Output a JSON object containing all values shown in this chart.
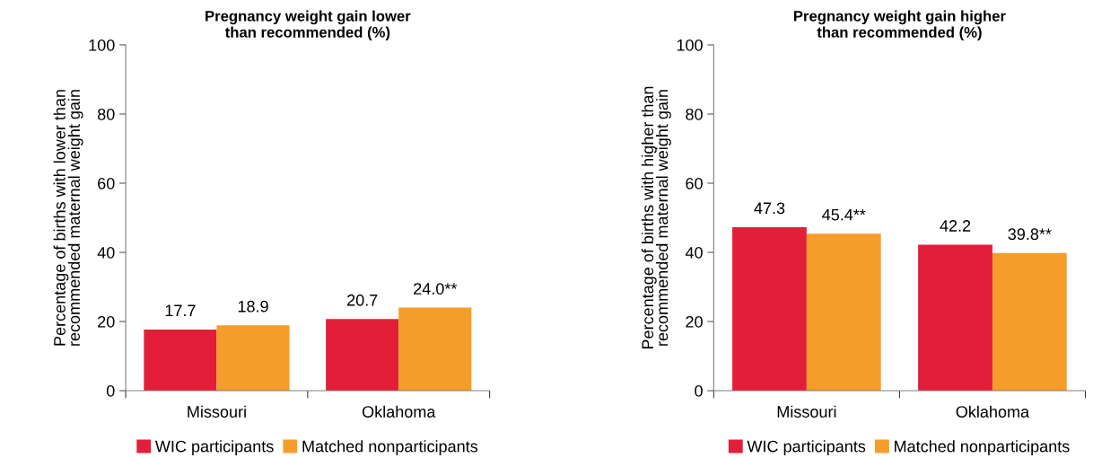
{
  "chart_data": [
    {
      "type": "bar",
      "title": "Pregnancy weight gain lower\nthan recommended (%)",
      "ylabel": "Percentage of births with lower than\nrecommended maternal weight gain",
      "categories": [
        "Missouri",
        "Oklahoma"
      ],
      "series": [
        {
          "name": "WIC participants",
          "color": "#e31e38",
          "values": [
            17.7,
            20.7
          ],
          "value_labels": [
            "17.7",
            "20.7"
          ]
        },
        {
          "name": "Matched nonparticipants",
          "color": "#f59d2a",
          "values": [
            18.9,
            24.0
          ],
          "value_labels": [
            "18.9",
            "24.0**"
          ]
        }
      ],
      "ylim": [
        0,
        100
      ],
      "yticks": [
        0,
        20,
        40,
        60,
        80,
        100
      ],
      "grid": false,
      "legend": "bottom"
    },
    {
      "type": "bar",
      "title": "Pregnancy weight gain higher\nthan recommended (%)",
      "ylabel": "Percentage of births with higher than\nrecommended maternal weight gain",
      "categories": [
        "Missouri",
        "Oklahoma"
      ],
      "series": [
        {
          "name": "WIC participants",
          "color": "#e31e38",
          "values": [
            47.3,
            42.2
          ],
          "value_labels": [
            "47.3",
            "42.2"
          ]
        },
        {
          "name": "Matched nonparticipants",
          "color": "#f59d2a",
          "values": [
            45.4,
            39.8
          ],
          "value_labels": [
            "45.4**",
            "39.8**"
          ]
        }
      ],
      "ylim": [
        0,
        100
      ],
      "yticks": [
        0,
        20,
        40,
        60,
        80,
        100
      ],
      "grid": false,
      "legend": "bottom"
    }
  ]
}
